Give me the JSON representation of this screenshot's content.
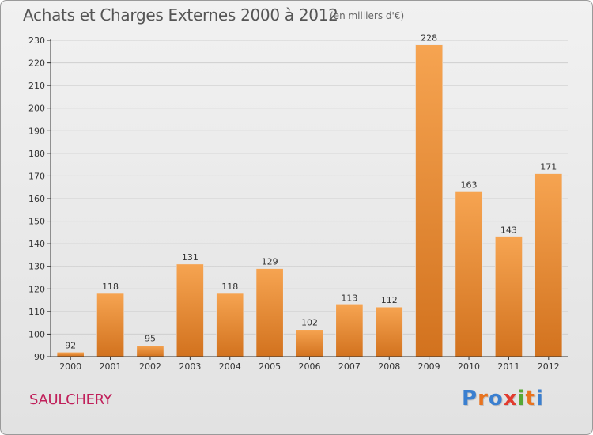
{
  "header": {
    "title": "Achats et Charges Externes 2000 à 2012",
    "subtitle": "(en milliers d'€)"
  },
  "footer": {
    "commune": "SAULCHERY",
    "logo_letters": [
      "P",
      "r",
      "o",
      "x",
      "i",
      "t",
      "i"
    ],
    "logo_colors": [
      "#3a7fd0",
      "#e8731f",
      "#3a7fd0",
      "#e23b2e",
      "#57a835",
      "#e8731f",
      "#3a7fd0"
    ]
  },
  "colors": {
    "bar_top": "#f6a451",
    "bar_bottom": "#d2721e",
    "grid": "#cfcfcf",
    "axis": "#333333"
  },
  "chart_data": {
    "type": "bar",
    "title": "Achats et Charges Externes 2000 à 2012",
    "subtitle": "(en milliers d'€)",
    "categories": [
      "2000",
      "2001",
      "2002",
      "2003",
      "2004",
      "2005",
      "2006",
      "2007",
      "2008",
      "2009",
      "2010",
      "2011",
      "2012"
    ],
    "values": [
      92,
      118,
      95,
      131,
      118,
      129,
      102,
      113,
      112,
      228,
      163,
      143,
      171
    ],
    "ylim": [
      90,
      230
    ],
    "yticks": [
      90,
      100,
      110,
      120,
      130,
      140,
      150,
      160,
      170,
      180,
      190,
      200,
      210,
      220,
      230
    ],
    "grid": true,
    "xlabel": "",
    "ylabel": ""
  }
}
